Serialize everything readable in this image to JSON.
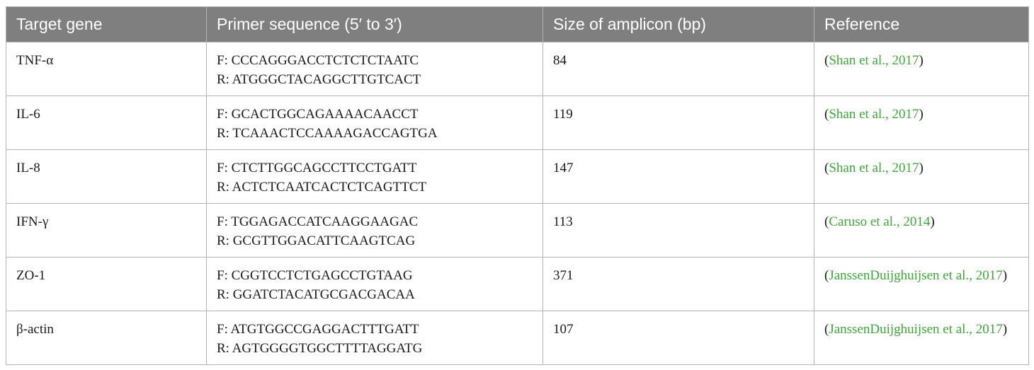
{
  "table": {
    "headers": [
      "Target gene",
      "Primer sequence (5′ to 3′)",
      "Size of amplicon (bp)",
      "Reference"
    ],
    "rows": [
      {
        "gene": "TNF-α",
        "forward": "F: CCCAGGGACCTCTCTCTAATC",
        "reverse": "R: ATGGGCTACAGGCTTGTCACT",
        "size": "84",
        "reference": "Shan et al., 2017"
      },
      {
        "gene": "IL-6",
        "forward": "F: GCACTGGCAGAAAACAACCT",
        "reverse": "R: TCAAACTCCAAAAGACCAGTGA",
        "size": "119",
        "reference": "Shan et al., 2017"
      },
      {
        "gene": "IL-8",
        "forward": "F: CTCTTGGCAGCCTTCCTGATT",
        "reverse": "R: ACTCTCAATCACTCTCAGTTCT",
        "size": "147",
        "reference": "Shan et al., 2017"
      },
      {
        "gene": "IFN-γ",
        "forward": "F: TGGAGACCATCAAGGAAGAC",
        "reverse": "R: GCGTTGGACATTCAAGTCAG",
        "size": "113",
        "reference": "Caruso et al., 2014"
      },
      {
        "gene": "ZO-1",
        "forward": "F: CGGTCCTCTGAGCCTGTAAG",
        "reverse": "R: GGATCTACATGCGACGACAA",
        "size": "371",
        "reference": "JanssenDuijghuijsen et al., 2017"
      },
      {
        "gene": "β-actin",
        "forward": "F: ATGTGGCCGAGGACTTTGATT",
        "reverse": "R: AGTGGGGTGGCTTTTAGGATG",
        "size": "107",
        "reference": "JanssenDuijghuijsen et al., 2017"
      }
    ]
  },
  "colors": {
    "header_bg": "#7f7f7f",
    "header_text": "#ffffff",
    "reference_link": "#3aa935",
    "border": "#b3b3b3"
  }
}
